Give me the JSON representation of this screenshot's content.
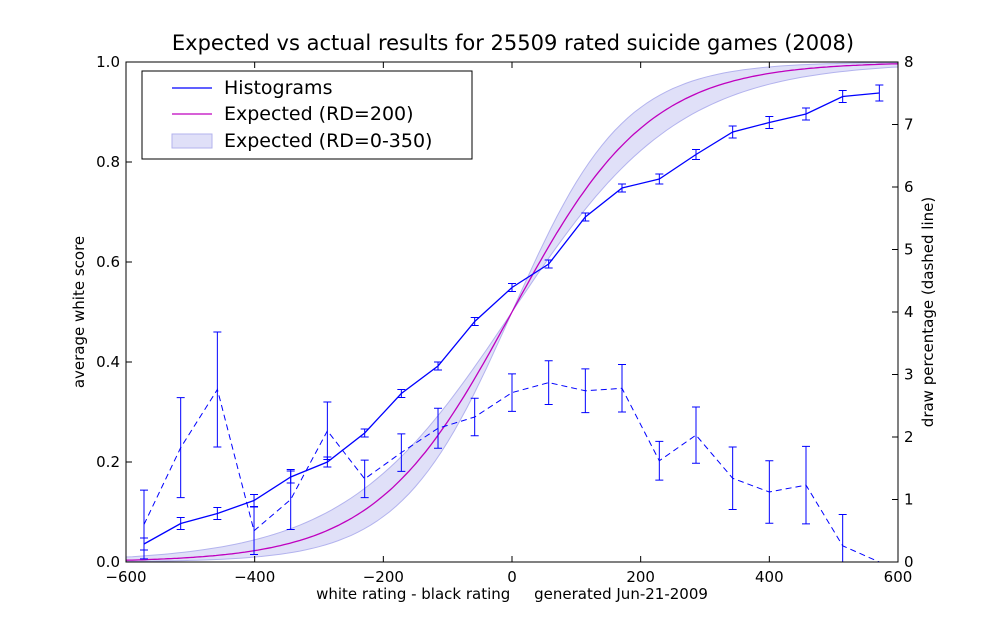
{
  "chart_data": {
    "type": "line",
    "title": "Expected vs actual results for 25509 rated suicide games (2008)",
    "xlabel": "white rating - black rating     generated Jun-21-2009",
    "ylabel": "average white score",
    "y2label": "draw percentage (dashed line)",
    "xlim": [
      -600,
      600
    ],
    "ylim": [
      0,
      1
    ],
    "y2lim": [
      0,
      8
    ],
    "xticks": [
      -600,
      -400,
      -200,
      0,
      200,
      400,
      600
    ],
    "yticks": [
      0,
      0.2,
      0.4,
      0.6,
      0.8,
      1
    ],
    "y2ticks": [
      0,
      1,
      2,
      3,
      4,
      5,
      6,
      7,
      8
    ],
    "ytick_labels": [
      "0.0",
      "0.2",
      "0.4",
      "0.6",
      "0.8",
      "1.0"
    ],
    "xtick_labels": [
      "−600",
      "−400",
      "−200",
      "0",
      "200",
      "400",
      "600"
    ],
    "y2tick_labels": [
      "0",
      "1",
      "2",
      "3",
      "4",
      "5",
      "6",
      "7",
      "8"
    ],
    "legend": {
      "position": "upper-left",
      "entries": [
        "Histograms",
        "Expected (RD=200)",
        "Expected (RD=0-350)"
      ]
    },
    "colors": {
      "histogram": "#0000ff",
      "expected": "#bf00bf",
      "band_fill": "#e0e0f8",
      "band_edge": "#b3b3ee"
    },
    "series": [
      {
        "name": "Histograms",
        "axis": "left",
        "style": "solid",
        "x": [
          -572,
          -515,
          -458,
          -401,
          -344,
          -287,
          -229,
          -172,
          -115,
          -58,
          0,
          57,
          114,
          171,
          229,
          286,
          343,
          400,
          457,
          514,
          571
        ],
        "y": [
          0.036,
          0.077,
          0.097,
          0.123,
          0.17,
          0.2,
          0.258,
          0.337,
          0.392,
          0.481,
          0.549,
          0.596,
          0.69,
          0.748,
          0.766,
          0.815,
          0.86,
          0.879,
          0.896,
          0.931,
          0.938
        ],
        "err": [
          0.012,
          0.012,
          0.012,
          0.012,
          0.012,
          0.01,
          0.008,
          0.008,
          0.008,
          0.008,
          0.008,
          0.008,
          0.008,
          0.008,
          0.01,
          0.01,
          0.012,
          0.012,
          0.012,
          0.012,
          0.016
        ]
      },
      {
        "name": "Draw percentage",
        "axis": "right",
        "style": "dashed",
        "x": [
          -572,
          -515,
          -458,
          -401,
          -344,
          -287,
          -229,
          -172,
          -115,
          -58,
          0,
          57,
          114,
          171,
          229,
          286,
          343,
          400,
          457,
          514,
          571
        ],
        "y": [
          0.6,
          1.83,
          2.76,
          0.5,
          1.0,
          2.1,
          1.33,
          1.75,
          2.14,
          2.32,
          2.71,
          2.87,
          2.74,
          2.78,
          1.62,
          2.03,
          1.34,
          1.12,
          1.23,
          0.26,
          0.0
        ],
        "err": [
          0.55,
          0.8,
          0.92,
          0.38,
          0.48,
          0.46,
          0.3,
          0.3,
          0.32,
          0.3,
          0.3,
          0.35,
          0.35,
          0.38,
          0.31,
          0.45,
          0.5,
          0.5,
          0.62,
          0.5,
          0.0
        ]
      },
      {
        "name": "Expected (RD=200)",
        "axis": "left",
        "style": "solid",
        "logistic_scale": 245
      },
      {
        "name": "Expected (RD=0-350)",
        "axis": "left",
        "style": "band",
        "logistic_scale_low": 200,
        "logistic_scale_high": 300
      }
    ]
  }
}
